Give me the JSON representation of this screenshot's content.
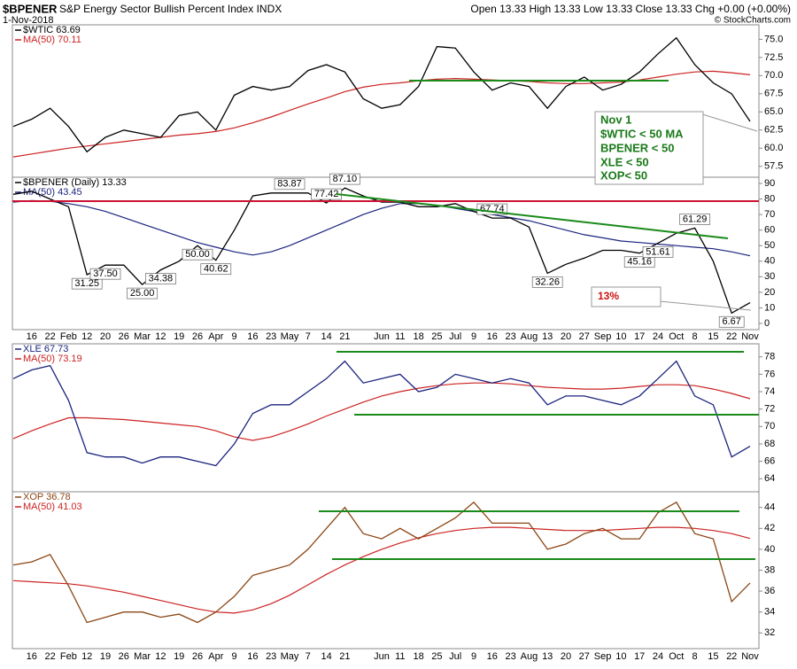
{
  "header": {
    "symbol": "$BPENER",
    "title": "S&P Energy Sector Bullish Percent Index INDX",
    "date": "1-Nov-2018",
    "quote": "Open 13.33  High 13.33  Low 13.33  Close 13.33  Chg +0.00 (+0.00%)",
    "copyright": "© StockCharts.com"
  },
  "chart_data": [
    {
      "type": "line",
      "series": [
        {
          "name": "$WTIC 63.69",
          "color": "#000000",
          "values": [
            63.0,
            64.0,
            65.5,
            63.0,
            59.5,
            61.5,
            62.5,
            62.0,
            61.5,
            64.5,
            65.0,
            62.5,
            67.3,
            68.5,
            68.0,
            68.5,
            70.7,
            71.5,
            70.5,
            66.8,
            65.5,
            66.0,
            68.5,
            74.0,
            73.8,
            70.5,
            68.0,
            69.0,
            68.5,
            65.5,
            68.5,
            69.8,
            68.0,
            68.8,
            70.5,
            73.0,
            75.2,
            71.5,
            69.0,
            67.5,
            63.69
          ]
        },
        {
          "name": "MA(50) 70.11",
          "color": "#cc2222",
          "values": [
            58.8,
            59.2,
            59.6,
            60.0,
            60.3,
            60.6,
            60.9,
            61.2,
            61.5,
            61.8,
            62.0,
            62.3,
            62.8,
            63.5,
            64.3,
            65.2,
            66.1,
            66.9,
            67.8,
            68.4,
            68.8,
            69.0,
            69.3,
            69.5,
            69.6,
            69.5,
            69.4,
            69.3,
            69.2,
            69.0,
            68.9,
            68.9,
            69.0,
            69.1,
            69.4,
            69.8,
            70.2,
            70.5,
            70.6,
            70.4,
            70.11
          ]
        }
      ],
      "ylim": [
        56,
        77
      ],
      "yticks": [
        57.5,
        {
          "value": 60,
          "label": "60.0"
        },
        62.5,
        {
          "value": 65,
          "label": "65.0"
        },
        67.5,
        {
          "value": 70,
          "label": "70.0"
        },
        72.5,
        {
          "value": 75,
          "label": "75.0"
        }
      ],
      "annotations": [
        "Nov 1",
        "$WTIC < 50 MA",
        "BPENER < 50",
        "XLE < 50",
        "XOP< 50"
      ]
    },
    {
      "type": "line",
      "categories": [
        null,
        "16",
        "22",
        "Feb",
        "12",
        "20",
        "26",
        "Mar",
        "12",
        "19",
        "26",
        "Apr",
        "9",
        "16",
        "23",
        "May",
        "7",
        "14",
        "21",
        null,
        "Jun",
        "11",
        "18",
        "25",
        "Jul",
        "9",
        "16",
        "23",
        "Aug",
        "13",
        "20",
        "27",
        "Sep",
        "10",
        "17",
        "24",
        "Oct",
        "8",
        "15",
        "22",
        "Nov"
      ],
      "series": [
        {
          "name": "$BPENER (Daily) 13.33",
          "color": "#000000",
          "values": [
            83,
            85,
            80,
            75,
            31.25,
            37.5,
            37.5,
            25,
            34.38,
            40,
            50,
            40.62,
            60,
            82,
            83.87,
            83.87,
            83.87,
            77.42,
            87.1,
            82,
            78,
            78,
            75,
            75,
            77,
            72,
            67.74,
            67.74,
            62,
            32.26,
            38,
            42,
            47,
            47,
            45.16,
            51.61,
            58,
            61.29,
            40,
            6.67,
            13.33
          ],
          "value_labels": [
            null,
            null,
            null,
            null,
            "31.25",
            "37.50",
            null,
            "25.00",
            "34.38",
            null,
            "50.00",
            "40.62",
            null,
            null,
            null,
            "83.87",
            null,
            "77.42",
            "87.10",
            null,
            null,
            null,
            null,
            null,
            null,
            null,
            "67.74",
            null,
            null,
            "32.26",
            null,
            null,
            null,
            null,
            "45.16",
            "51.61",
            null,
            "61.29",
            null,
            "6.67",
            null
          ]
        },
        {
          "name": "MA(50) 43.45",
          "color": "#1a237e",
          "values": [
            78,
            79,
            78.5,
            77,
            75,
            72,
            68,
            64,
            60,
            56,
            52,
            49,
            46,
            44,
            46,
            50,
            55,
            60,
            65,
            70,
            74,
            77,
            77,
            76,
            74,
            72,
            70,
            68,
            66,
            63,
            60,
            57,
            55,
            53,
            52,
            51,
            50,
            49,
            48,
            46,
            43.45
          ]
        }
      ],
      "ylim": [
        -4,
        94
      ],
      "yticks": [
        0,
        10,
        20,
        30,
        40,
        50,
        60,
        70,
        80,
        90
      ],
      "annotations": [
        "13%"
      ]
    },
    {
      "type": "line",
      "series": [
        {
          "name": "XLE 67.73",
          "color": "#1a237e",
          "values": [
            75.5,
            76.5,
            77.0,
            73.0,
            67.0,
            66.5,
            66.5,
            65.8,
            66.5,
            66.5,
            66.0,
            65.5,
            68.0,
            71.5,
            72.5,
            72.5,
            74.0,
            75.5,
            77.5,
            75.0,
            75.5,
            76.0,
            74.0,
            74.5,
            76.0,
            75.5,
            75.0,
            75.5,
            75.0,
            72.5,
            73.5,
            73.5,
            73.0,
            72.5,
            73.5,
            75.5,
            77.5,
            73.5,
            72.5,
            66.5,
            67.73
          ]
        },
        {
          "name": "MA(50) 73.19",
          "color": "#cc2222",
          "values": [
            68.6,
            69.5,
            70.3,
            71.0,
            71.0,
            70.9,
            70.8,
            70.6,
            70.4,
            70.2,
            70.0,
            69.5,
            68.8,
            68.4,
            68.8,
            69.5,
            70.3,
            71.2,
            72.0,
            72.8,
            73.5,
            74.0,
            74.4,
            74.7,
            74.9,
            75.0,
            75.0,
            74.9,
            74.7,
            74.5,
            74.4,
            74.3,
            74.3,
            74.4,
            74.6,
            74.8,
            74.8,
            74.7,
            74.3,
            73.8,
            73.19
          ]
        }
      ],
      "ylim": [
        62.5,
        79.5
      ],
      "yticks": [
        64,
        66,
        68,
        70,
        72,
        74,
        76,
        78
      ]
    },
    {
      "type": "line",
      "categories": [
        null,
        "16",
        "22",
        "Feb",
        "12",
        "19",
        "26",
        "Mar",
        "12",
        "19",
        "26",
        "Apr",
        "9",
        "16",
        "23",
        "May",
        "7",
        "14",
        "21",
        null,
        "Jun",
        "11",
        "18",
        "25",
        "Jul",
        "9",
        "16",
        "23",
        "Aug",
        "13",
        "20",
        "27",
        "Sep",
        "10",
        "17",
        "24",
        "Oct",
        "8",
        "15",
        "22",
        "Nov"
      ],
      "series": [
        {
          "name": "XOP 36.78",
          "color": "#8b4513",
          "values": [
            38.5,
            38.8,
            39.5,
            36.5,
            33.0,
            33.5,
            34.0,
            34.0,
            33.5,
            33.8,
            33.0,
            34.0,
            35.5,
            37.5,
            38.0,
            38.5,
            40.0,
            42.0,
            44.0,
            41.5,
            41.0,
            42.0,
            41.0,
            42.0,
            43.0,
            44.5,
            42.5,
            42.5,
            42.5,
            40.0,
            40.5,
            41.5,
            42.0,
            41.0,
            41.0,
            43.5,
            44.5,
            41.5,
            41.0,
            35.0,
            36.78
          ]
        },
        {
          "name": "MA(50) 41.03",
          "color": "#cc2222",
          "values": [
            37.0,
            36.9,
            36.8,
            36.7,
            36.5,
            36.2,
            35.9,
            35.5,
            35.1,
            34.7,
            34.3,
            34.0,
            33.9,
            34.2,
            34.8,
            35.6,
            36.6,
            37.6,
            38.5,
            39.3,
            40.0,
            40.6,
            41.1,
            41.5,
            41.8,
            42.0,
            42.1,
            42.1,
            42.0,
            41.9,
            41.8,
            41.8,
            41.8,
            41.9,
            42.0,
            42.1,
            42.1,
            42.0,
            41.8,
            41.5,
            41.03
          ]
        }
      ],
      "ylim": [
        30.5,
        45.5
      ],
      "yticks": [
        32,
        34,
        36,
        38,
        40,
        42,
        44
      ]
    }
  ]
}
